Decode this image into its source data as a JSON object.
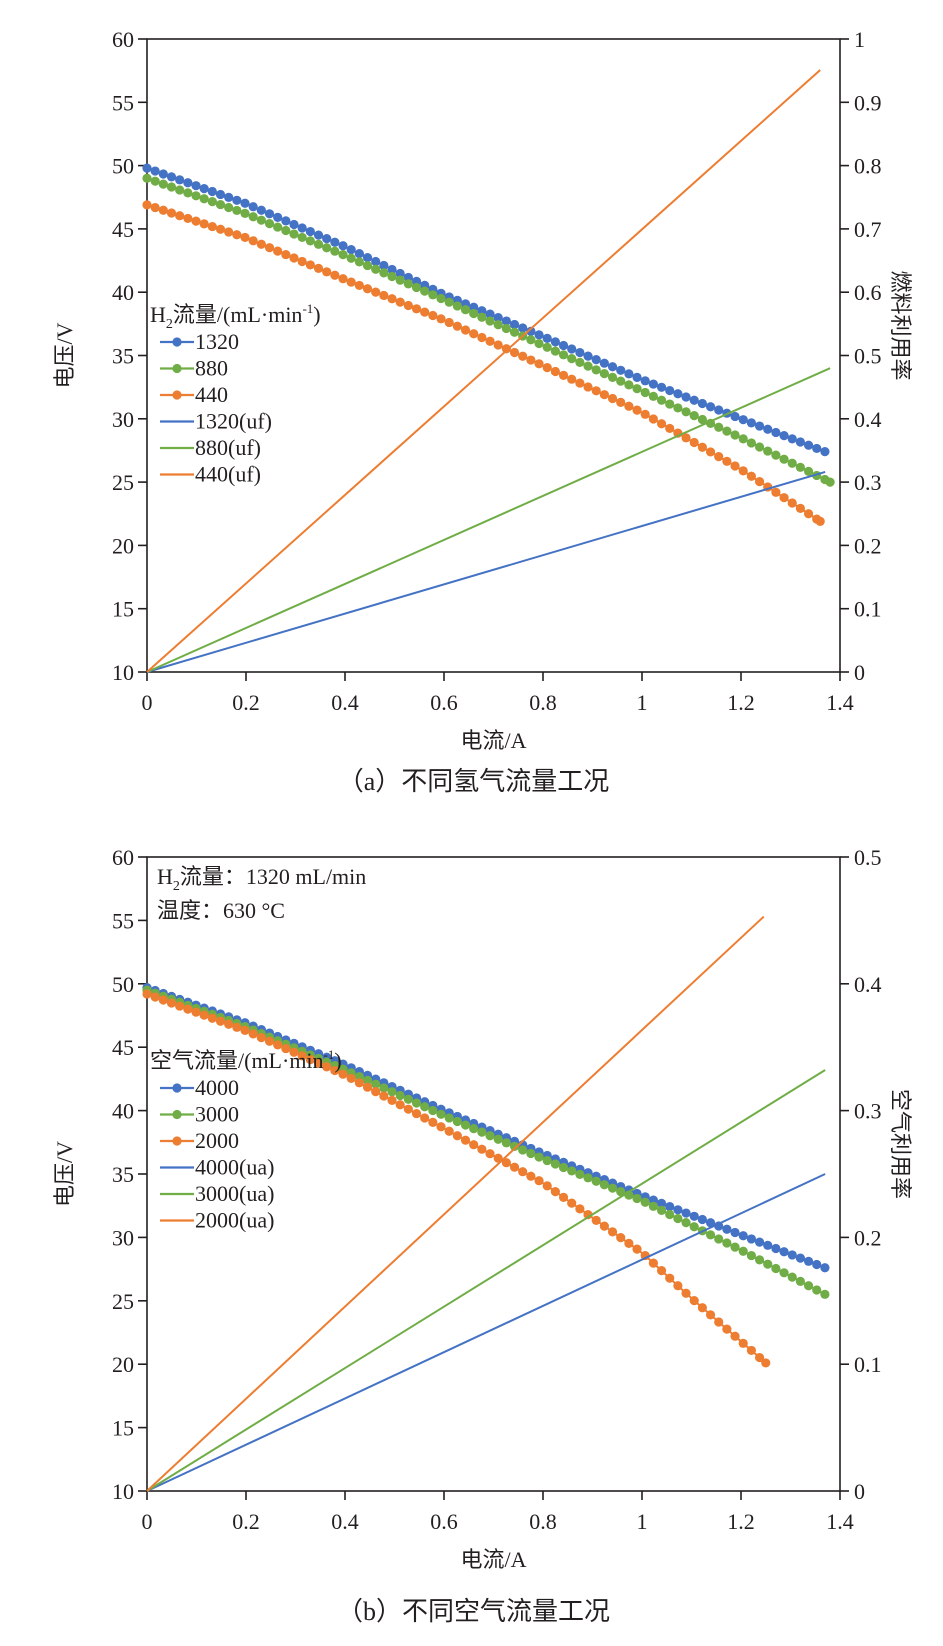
{
  "chart_data": [
    {
      "type": "line",
      "id": "a",
      "caption": "（a）不同氢气流量工况",
      "xlabel": "电流/A",
      "ylabel": "电压/V",
      "y2label": "燃料利用率",
      "xlim": [
        0,
        1.4
      ],
      "ylim": [
        10,
        60
      ],
      "y2lim": [
        0,
        1
      ],
      "xticks": [
        "0",
        "0.2",
        "0.4",
        "0.6",
        "0.8",
        "1",
        "1.2",
        "1.4"
      ],
      "yticks": [
        "10",
        "15",
        "20",
        "25",
        "30",
        "35",
        "40",
        "45",
        "50",
        "55",
        "60"
      ],
      "y2ticks": [
        "0",
        "0.1",
        "0.2",
        "0.3",
        "0.4",
        "0.5",
        "0.6",
        "0.7",
        "0.8",
        "0.9",
        "1"
      ],
      "legend": {
        "title_prefix": "H",
        "title_sub": "2",
        "title_main": "流量/(mL·min",
        "title_sup": "-1",
        "title_end": ")",
        "placement": "left-middle"
      },
      "notes": [],
      "series": [
        {
          "name": "1320",
          "axis": "left",
          "style": "markers",
          "color": "#4472c4",
          "x_end": 1.37,
          "anchors": [
            [
              0,
              49.8
            ],
            [
              0.2,
              47.0
            ],
            [
              0.4,
              43.6
            ],
            [
              0.6,
              39.8
            ],
            [
              0.8,
              36.5
            ],
            [
              1.0,
              33.1
            ],
            [
              1.2,
              30.0
            ],
            [
              1.37,
              27.4
            ]
          ]
        },
        {
          "name": "880",
          "axis": "left",
          "style": "markers",
          "color": "#70ad47",
          "x_end": 1.38,
          "anchors": [
            [
              0,
              49.0
            ],
            [
              0.2,
              46.2
            ],
            [
              0.4,
              42.9
            ],
            [
              0.6,
              39.4
            ],
            [
              0.8,
              35.8
            ],
            [
              1.0,
              32.2
            ],
            [
              1.2,
              28.5
            ],
            [
              1.38,
              25.0
            ]
          ]
        },
        {
          "name": "440",
          "axis": "left",
          "style": "markers",
          "color": "#ed7d31",
          "x_end": 1.36,
          "anchors": [
            [
              0,
              46.9
            ],
            [
              0.2,
              44.3
            ],
            [
              0.4,
              41.0
            ],
            [
              0.6,
              37.8
            ],
            [
              0.8,
              34.2
            ],
            [
              1.0,
              30.5
            ],
            [
              1.2,
              26.0
            ],
            [
              1.36,
              21.9
            ]
          ]
        },
        {
          "name": "1320(uf)",
          "axis": "right",
          "style": "line",
          "color": "#4472c4",
          "anchors": [
            [
              0,
              0
            ],
            [
              1.37,
              0.316
            ]
          ]
        },
        {
          "name": "880(uf)",
          "axis": "right",
          "style": "line",
          "color": "#70ad47",
          "anchors": [
            [
              0,
              0
            ],
            [
              1.38,
              0.48
            ]
          ]
        },
        {
          "name": "440(uf)",
          "axis": "right",
          "style": "line",
          "color": "#ed7d31",
          "anchors": [
            [
              0,
              0
            ],
            [
              1.36,
              0.951
            ]
          ]
        }
      ]
    },
    {
      "type": "line",
      "id": "b",
      "caption": "（b）不同空气流量工况",
      "xlabel": "电流/A",
      "ylabel": "电压/V",
      "y2label": "空气利用率",
      "xlim": [
        0,
        1.4
      ],
      "ylim": [
        10,
        60
      ],
      "y2lim": [
        0,
        0.5
      ],
      "xticks": [
        "0",
        "0.2",
        "0.4",
        "0.6",
        "0.8",
        "1",
        "1.2",
        "1.4"
      ],
      "yticks": [
        "10",
        "15",
        "20",
        "25",
        "30",
        "35",
        "40",
        "45",
        "50",
        "55",
        "60"
      ],
      "y2ticks": [
        "0",
        "0.1",
        "0.2",
        "0.3",
        "0.4",
        "0.5"
      ],
      "legend": {
        "title_prefix": "",
        "title_sub": "",
        "title_main": "空气流量/(mL·min",
        "title_sup": "-1",
        "title_end": ")",
        "placement": "left-middle"
      },
      "notes": [
        {
          "prefix": "H",
          "sub": "2",
          "text": "流量：1320 mL/min"
        },
        {
          "prefix": "",
          "sub": "",
          "text": "温度：630 °C"
        }
      ],
      "series": [
        {
          "name": "4000",
          "axis": "left",
          "style": "markers",
          "color": "#4472c4",
          "x_end": 1.37,
          "anchors": [
            [
              0,
              49.7
            ],
            [
              0.2,
              46.9
            ],
            [
              0.4,
              43.6
            ],
            [
              0.6,
              40.0
            ],
            [
              0.8,
              36.6
            ],
            [
              1.0,
              33.3
            ],
            [
              1.2,
              30.2
            ],
            [
              1.37,
              27.6
            ]
          ]
        },
        {
          "name": "3000",
          "axis": "left",
          "style": "markers",
          "color": "#70ad47",
          "x_end": 1.37,
          "anchors": [
            [
              0,
              49.5
            ],
            [
              0.2,
              46.6
            ],
            [
              0.4,
              43.2
            ],
            [
              0.6,
              39.6
            ],
            [
              0.8,
              36.2
            ],
            [
              1.0,
              32.9
            ],
            [
              1.2,
              29.0
            ],
            [
              1.37,
              25.5
            ]
          ]
        },
        {
          "name": "2000",
          "axis": "left",
          "style": "markers",
          "color": "#ed7d31",
          "x_end": 1.25,
          "anchors": [
            [
              0,
              49.2
            ],
            [
              0.2,
              46.3
            ],
            [
              0.4,
              42.8
            ],
            [
              0.6,
              38.6
            ],
            [
              0.8,
              34.3
            ],
            [
              1.0,
              28.8
            ],
            [
              1.1,
              25.2
            ],
            [
              1.25,
              20.1
            ]
          ]
        },
        {
          "name": "4000(ua)",
          "axis": "right",
          "style": "line",
          "color": "#4472c4",
          "anchors": [
            [
              0,
              0
            ],
            [
              1.37,
              0.25
            ]
          ]
        },
        {
          "name": "3000(ua)",
          "axis": "right",
          "style": "line",
          "color": "#70ad47",
          "anchors": [
            [
              0,
              0
            ],
            [
              1.37,
              0.332
            ]
          ]
        },
        {
          "name": "2000(ua)",
          "axis": "right",
          "style": "line",
          "color": "#ed7d31",
          "anchors": [
            [
              0,
              0
            ],
            [
              1.246,
              0.453
            ]
          ]
        }
      ]
    }
  ]
}
